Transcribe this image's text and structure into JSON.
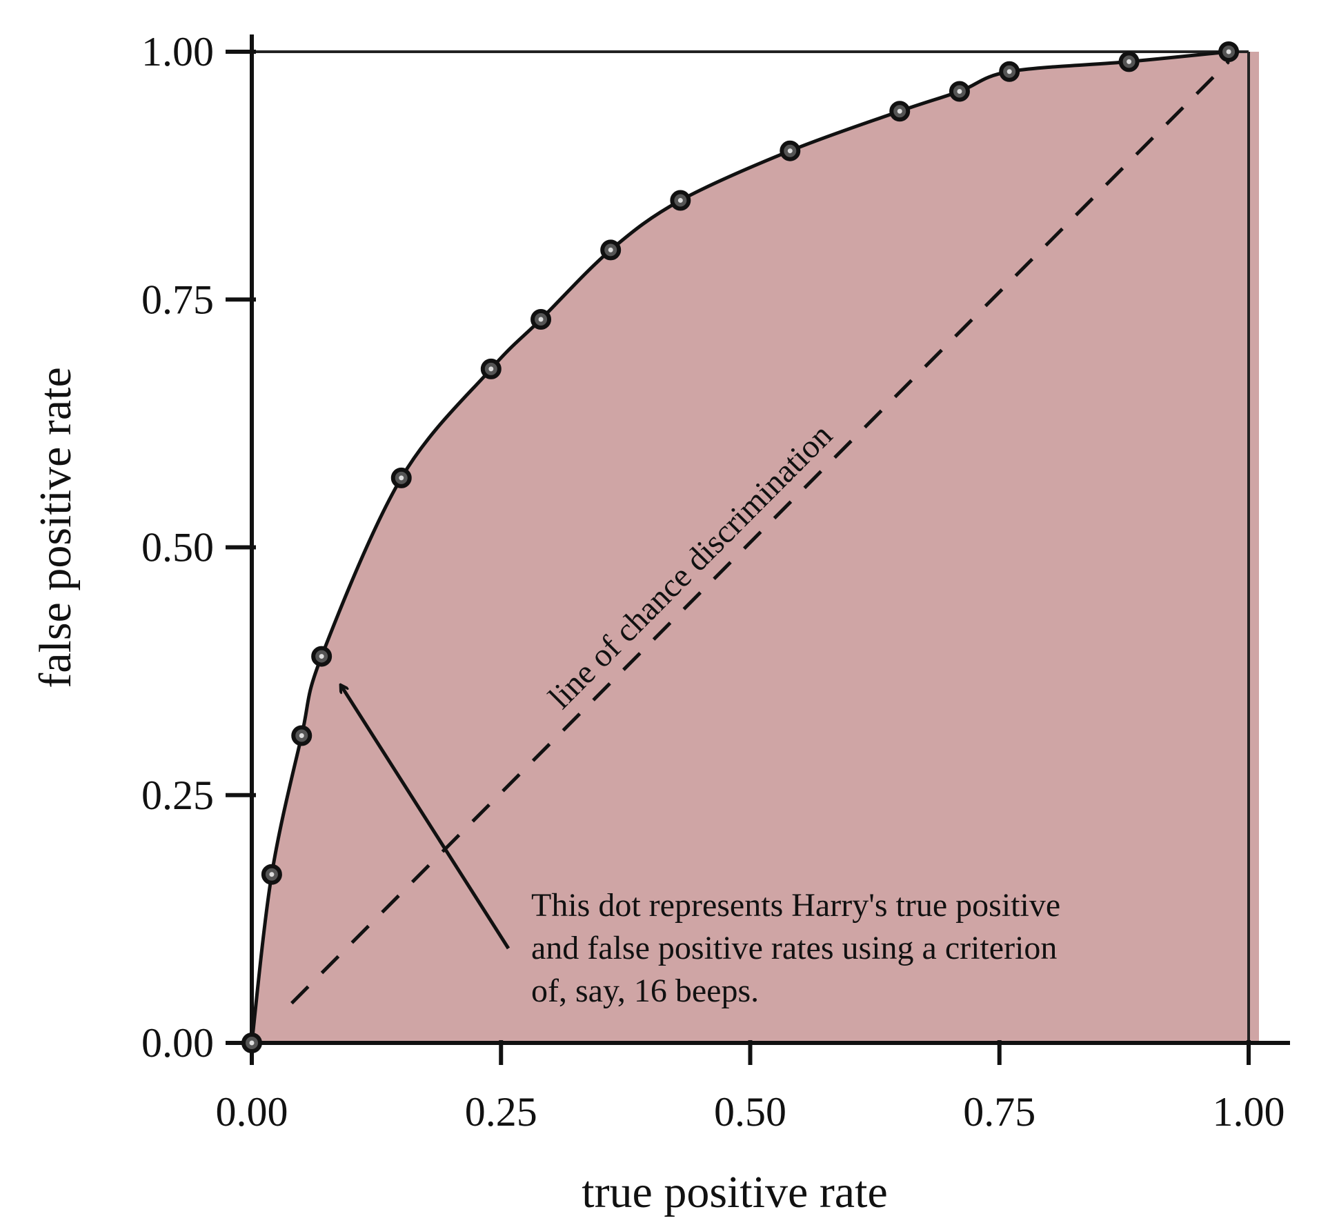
{
  "chart_data": {
    "type": "line",
    "title": "",
    "xlabel": "true positive rate",
    "ylabel": "false positive rate",
    "xlim": [
      0,
      1
    ],
    "ylim": [
      0,
      1
    ],
    "xticks": [
      "0.00",
      "0.25",
      "0.50",
      "0.75",
      "1.00"
    ],
    "yticks": [
      "0.00",
      "0.25",
      "0.50",
      "0.75",
      "1.00"
    ],
    "grid": false,
    "fill_color": "#cfa5a5",
    "series": [
      {
        "x": [
          0.0,
          0.02,
          0.05,
          0.07,
          0.15,
          0.24,
          0.29,
          0.36,
          0.43,
          0.54,
          0.65,
          0.71,
          0.76,
          0.88,
          0.98
        ],
        "y": [
          0.0,
          0.17,
          0.31,
          0.39,
          0.57,
          0.68,
          0.73,
          0.8,
          0.85,
          0.9,
          0.94,
          0.96,
          0.98,
          0.99,
          1.0
        ]
      }
    ],
    "reference_line": {
      "label": "line of chance discrimination",
      "x": [
        0.04,
        0.98
      ],
      "y": [
        0.04,
        0.99
      ]
    },
    "annotation": {
      "lines": [
        "This dot represents Harry's true positive",
        "and false positive rates using a criterion",
        "of, say, 16 beeps."
      ],
      "points_to_index": 3
    }
  }
}
